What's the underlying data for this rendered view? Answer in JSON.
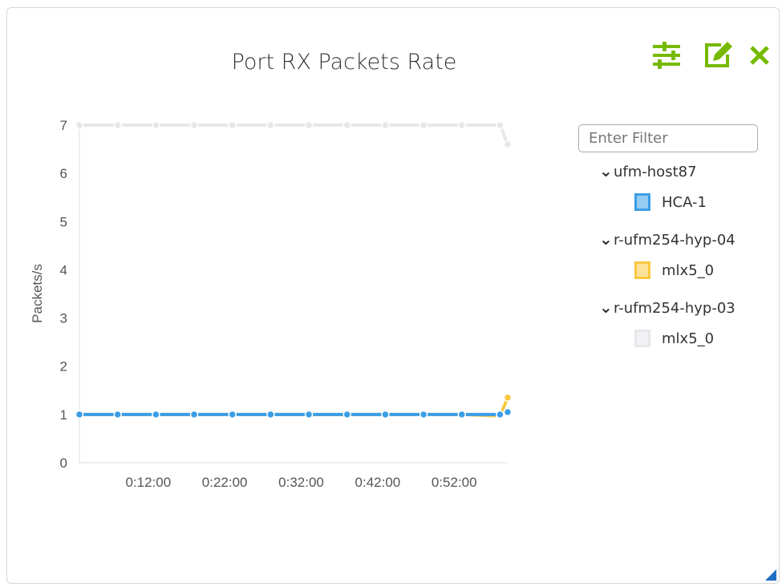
{
  "title": "Port RX Packets Rate",
  "toolbar": {
    "icons": [
      "sliders-icon",
      "edit-icon",
      "close-icon"
    ],
    "accent": "#76b900"
  },
  "filter": {
    "placeholder": "Enter Filter",
    "value": ""
  },
  "legend": [
    {
      "host": "ufm-host87",
      "devices": [
        {
          "name": "HCA-1",
          "color": "#3a9de6"
        }
      ]
    },
    {
      "host": "r-ufm254-hyp-04",
      "devices": [
        {
          "name": "mlx5_0",
          "color": "#f9c840"
        }
      ]
    },
    {
      "host": "r-ufm254-hyp-03",
      "devices": [
        {
          "name": "mlx5_0",
          "color": "#e6e7ea"
        }
      ]
    }
  ],
  "chart_data": {
    "type": "line",
    "title": "Port RX Packets Rate",
    "ylabel": "Packets/s",
    "xlabel": "",
    "ylim": [
      0,
      7
    ],
    "yticks": [
      "0",
      "1",
      "2",
      "3",
      "4",
      "5",
      "6",
      "7"
    ],
    "xticks": [
      "0:12:00",
      "0:22:00",
      "0:32:00",
      "0:42:00",
      "0:52:00"
    ],
    "x_minutes": [
      3,
      8,
      13,
      18,
      23,
      28,
      33,
      38,
      43,
      48,
      53,
      58,
      59
    ],
    "xlim_minutes": [
      3,
      59
    ],
    "series": [
      {
        "name": "r-ufm254-hyp-03 mlx5_0",
        "color": "#e6e7ea",
        "values": [
          7,
          7,
          7,
          7,
          7,
          7,
          7,
          7,
          7,
          7,
          7,
          7,
          6.6
        ]
      },
      {
        "name": "r-ufm254-hyp-04 mlx5_0",
        "color": "#f9c840",
        "values": [
          1,
          1,
          1,
          1,
          1,
          1,
          1,
          1,
          1,
          1,
          1,
          0.97,
          1.35
        ]
      },
      {
        "name": "ufm-host87 HCA-1",
        "color": "#3a9de6",
        "values": [
          1,
          1,
          1,
          1,
          1,
          1,
          1,
          1,
          1,
          1,
          1,
          1,
          1.05
        ]
      }
    ],
    "grid": false,
    "legend": "right"
  }
}
